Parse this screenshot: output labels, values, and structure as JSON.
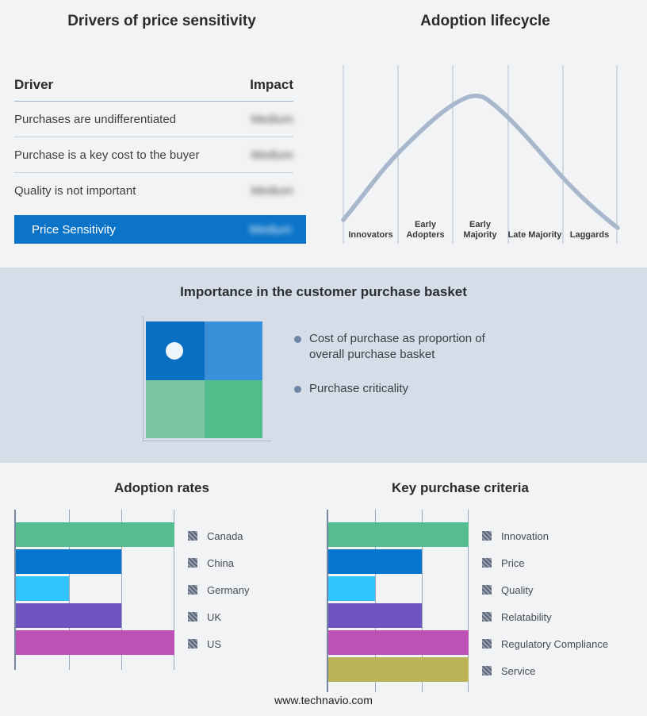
{
  "drivers": {
    "title": "Drivers of price sensitivity",
    "header": {
      "driver": "Driver",
      "impact": "Impact"
    },
    "rows": [
      {
        "label": "Purchases are undifferentiated",
        "impact": "Medium"
      },
      {
        "label": "Purchase is a key cost to the buyer",
        "impact": "Medium"
      },
      {
        "label": "Quality is not important",
        "impact": "Medium"
      }
    ],
    "highlight": {
      "label": "Price Sensitivity",
      "impact": "Medium"
    },
    "colors": {
      "highlight_bg": "#0b74c9"
    }
  },
  "lifecycle": {
    "title": "Adoption lifecycle",
    "stages": [
      "Innovators",
      "Early Adopters",
      "Early Majority",
      "Late Majority",
      "Laggards"
    ],
    "colors": {
      "curve": "#a9b7cc",
      "gridline": "#b4bfd1"
    }
  },
  "basket": {
    "title": "Importance in the customer purchase basket",
    "bullets": [
      "Cost of purchase as proportion of overall purchase basket",
      "Purchase criticality"
    ],
    "band_bg": "#d5dde8",
    "quadrant": {
      "top_left": "#0b6fc4",
      "top_right": "#3990d8",
      "bottom_left": "#7dc4a2",
      "bottom_right": "#53bd8b",
      "marker_color": "#edf5fb",
      "marker_position": "top_left"
    }
  },
  "chart_data": [
    {
      "type": "bar",
      "orientation": "horizontal",
      "title": "Adoption rates",
      "categories": [
        "Canada",
        "China",
        "Germany",
        "UK",
        "US"
      ],
      "values": [
        3,
        2,
        1,
        2,
        3
      ],
      "colors": [
        "#55bd90",
        "#0575cd",
        "#31c3fb",
        "#6f54c1",
        "#bc52b6"
      ],
      "xlim": [
        0,
        3
      ],
      "grid": true,
      "axis_tick_labels": "none",
      "legend_position": "right",
      "legend_swatch_style": "gray-hatched"
    },
    {
      "type": "bar",
      "orientation": "horizontal",
      "title": "Key purchase criteria",
      "categories": [
        "Innovation",
        "Price",
        "Quality",
        "Relatability",
        "Regulatory Compliance",
        "Service"
      ],
      "values": [
        3,
        2,
        1,
        2,
        3,
        3
      ],
      "colors": [
        "#55bd90",
        "#0575cd",
        "#31c3fb",
        "#6f54c1",
        "#bc52b6",
        "#bbb456"
      ],
      "xlim": [
        0,
        3
      ],
      "grid": true,
      "axis_tick_labels": "none",
      "legend_position": "right",
      "legend_swatch_style": "gray-hatched"
    },
    {
      "type": "line",
      "title": "Adoption lifecycle",
      "x": [
        "Innovators",
        "Early Adopters",
        "Early Majority",
        "Late Majority",
        "Laggards"
      ],
      "y_relative": [
        0.05,
        0.55,
        1.0,
        0.85,
        0.1
      ],
      "shape": "bell curve peaking at Early Majority",
      "grid": "vertical stage separators"
    }
  ],
  "footer": {
    "url": "www.technavio.com"
  }
}
